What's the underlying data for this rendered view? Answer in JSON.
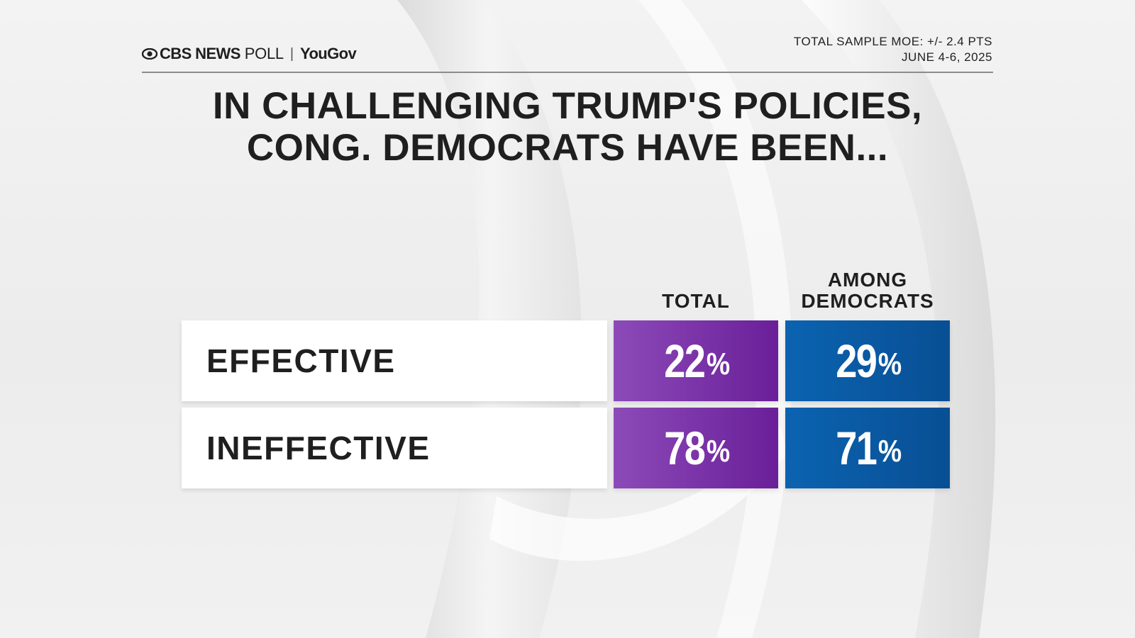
{
  "header": {
    "brand": "CBS NEWS",
    "poll": "POLL",
    "separator": "|",
    "partner": "YouGov",
    "moe": "TOTAL SAMPLE MOE: +/- 2.4 PTS",
    "dates": "JUNE 4-6, 2025"
  },
  "chart_data": {
    "type": "table",
    "title_lines": [
      "IN CHALLENGING TRUMP'S POLICIES,",
      "CONG. DEMOCRATS HAVE BEEN..."
    ],
    "columns": [
      {
        "name": "TOTAL",
        "header_lines": [
          "TOTAL"
        ],
        "color": "#7b2fa8"
      },
      {
        "name": "AMONG DEMOCRATS",
        "header_lines": [
          "AMONG",
          "DEMOCRATS"
        ],
        "color": "#0a5aa3"
      }
    ],
    "categories": [
      "EFFECTIVE",
      "INEFFECTIVE"
    ],
    "series": [
      {
        "name": "TOTAL",
        "values": [
          22,
          78
        ]
      },
      {
        "name": "AMONG DEMOCRATS",
        "values": [
          29,
          71
        ]
      }
    ],
    "unit": "%",
    "table": {
      "rows": [
        {
          "label": "EFFECTIVE",
          "total": "22",
          "democrats": "29"
        },
        {
          "label": "INEFFECTIVE",
          "total": "78",
          "democrats": "71"
        }
      ]
    }
  },
  "colors": {
    "total_start": "#8c4ab8",
    "total_end": "#6a1f99",
    "dem_start": "#0b63b0",
    "dem_end": "#084f94"
  }
}
